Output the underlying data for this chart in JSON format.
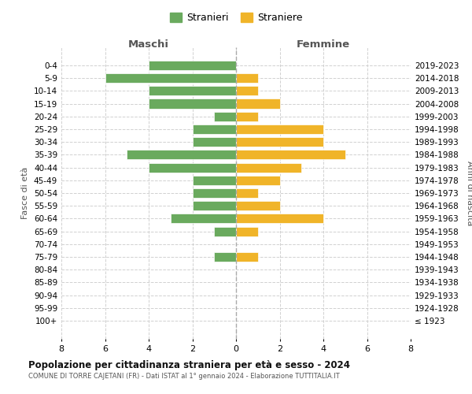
{
  "age_groups": [
    "0-4",
    "5-9",
    "10-14",
    "15-19",
    "20-24",
    "25-29",
    "30-34",
    "35-39",
    "40-44",
    "45-49",
    "50-54",
    "55-59",
    "60-64",
    "65-69",
    "70-74",
    "75-79",
    "80-84",
    "85-89",
    "90-94",
    "95-99",
    "100+"
  ],
  "birth_years": [
    "2019-2023",
    "2014-2018",
    "2009-2013",
    "2004-2008",
    "1999-2003",
    "1994-1998",
    "1989-1993",
    "1984-1988",
    "1979-1983",
    "1974-1978",
    "1969-1973",
    "1964-1968",
    "1959-1963",
    "1954-1958",
    "1949-1953",
    "1944-1948",
    "1939-1943",
    "1934-1938",
    "1929-1933",
    "1924-1928",
    "≤ 1923"
  ],
  "maschi": [
    4,
    6,
    4,
    4,
    1,
    2,
    2,
    5,
    4,
    2,
    2,
    2,
    3,
    1,
    0,
    1,
    0,
    0,
    0,
    0,
    0
  ],
  "femmine": [
    0,
    1,
    1,
    2,
    1,
    4,
    4,
    5,
    3,
    2,
    1,
    2,
    4,
    1,
    0,
    1,
    0,
    0,
    0,
    0,
    0
  ],
  "color_maschi": "#6aaa5e",
  "color_femmine": "#f0b429",
  "title": "Popolazione per cittadinanza straniera per età e sesso - 2024",
  "subtitle": "COMUNE DI TORRE CAJETANI (FR) - Dati ISTAT al 1° gennaio 2024 - Elaborazione TUTTITALIA.IT",
  "xlabel_left": "Maschi",
  "xlabel_right": "Femmine",
  "ylabel_left": "Fasce di età",
  "ylabel_right": "Anni di nascita",
  "legend_maschi": "Stranieri",
  "legend_femmine": "Straniere",
  "xlim": 8,
  "background_color": "#ffffff",
  "grid_color": "#cccccc"
}
